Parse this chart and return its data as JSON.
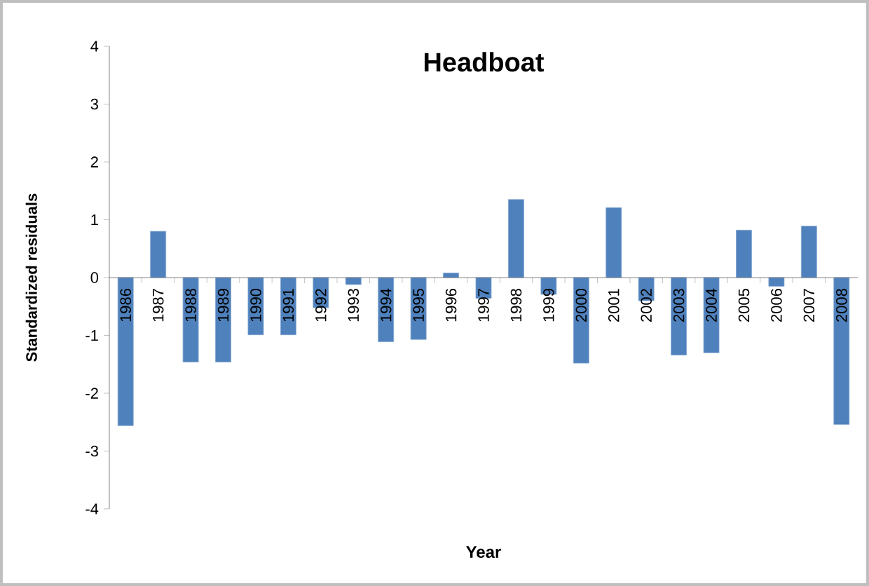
{
  "chart_data": {
    "type": "bar",
    "title": "Headboat",
    "xlabel": "Year",
    "ylabel": "Standardized residuals",
    "categories": [
      "1986",
      "1987",
      "1988",
      "1989",
      "1990",
      "1991",
      "1992",
      "1993",
      "1994",
      "1995",
      "1996",
      "1997",
      "1998",
      "1999",
      "2000",
      "2001",
      "2002",
      "2003",
      "2004",
      "2005",
      "2006",
      "2007",
      "2008"
    ],
    "values": [
      -2.56,
      0.8,
      -1.46,
      -1.46,
      -0.99,
      -0.99,
      -0.52,
      -0.12,
      -1.11,
      -1.07,
      0.08,
      -0.36,
      1.35,
      -0.29,
      -1.48,
      1.21,
      -0.4,
      -1.34,
      -1.3,
      0.82,
      -0.15,
      0.89,
      -2.54
    ],
    "color": "#4f81bd",
    "ylim": [
      -4,
      4
    ],
    "yticks": [
      -4,
      -3,
      -2,
      -1,
      0,
      1,
      2,
      3,
      4
    ],
    "grid": false
  }
}
